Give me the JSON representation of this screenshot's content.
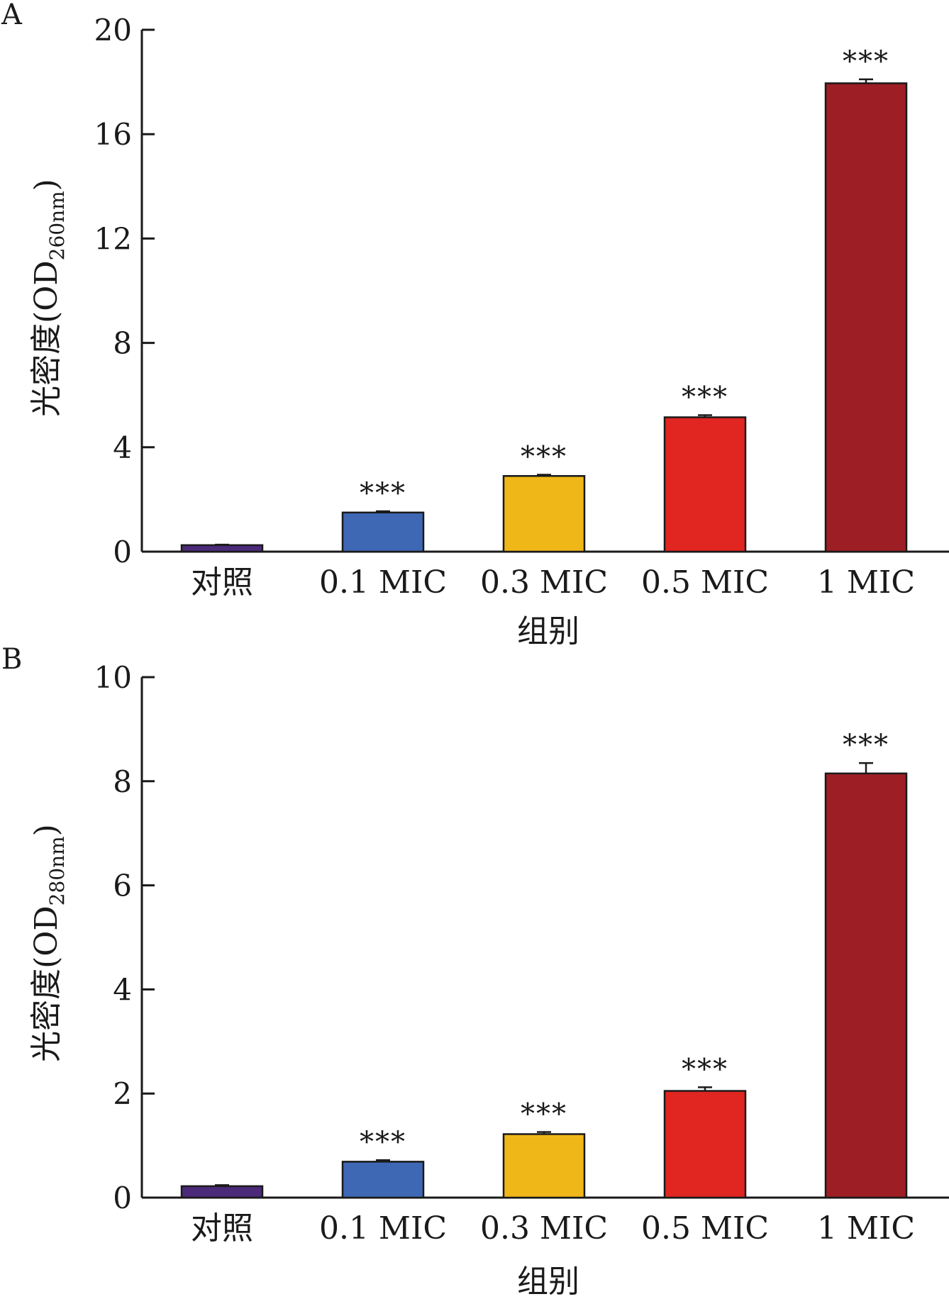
{
  "chart_data": [
    {
      "panel": "A",
      "type": "bar",
      "categories": [
        "对照",
        "0.1 MIC",
        "0.3 MIC",
        "0.5 MIC",
        "1 MIC"
      ],
      "values": [
        0.25,
        1.5,
        2.9,
        5.15,
        17.95
      ],
      "errors": [
        0.02,
        0.05,
        0.05,
        0.08,
        0.15
      ],
      "significance": [
        "",
        "***",
        "***",
        "***",
        "***"
      ],
      "colors": [
        "#4b2a7a",
        "#3e68b4",
        "#f0b719",
        "#e12520",
        "#9d1e24"
      ],
      "ylabel_main": "光密度(OD",
      "ylabel_sub": "260nm",
      "ylabel_close": ")",
      "xlabel": "组别",
      "yticks": [
        "0",
        "4",
        "8",
        "12",
        "16",
        "20"
      ],
      "ylim": [
        0,
        20
      ]
    },
    {
      "panel": "B",
      "type": "bar",
      "categories": [
        "对照",
        "0.1 MIC",
        "0.3 MIC",
        "0.5 MIC",
        "1 MIC"
      ],
      "values": [
        0.22,
        0.69,
        1.22,
        2.05,
        8.15
      ],
      "errors": [
        0.02,
        0.03,
        0.04,
        0.07,
        0.2
      ],
      "significance": [
        "",
        "***",
        "***",
        "***",
        "***"
      ],
      "colors": [
        "#4b2a7a",
        "#3e68b4",
        "#f0b719",
        "#e12520",
        "#9d1e24"
      ],
      "ylabel_main": "光密度(OD",
      "ylabel_sub": "280nm",
      "ylabel_close": ")",
      "xlabel": "组别",
      "yticks": [
        "0",
        "2",
        "4",
        "6",
        "8",
        "10"
      ],
      "ylim": [
        0,
        10
      ]
    }
  ]
}
